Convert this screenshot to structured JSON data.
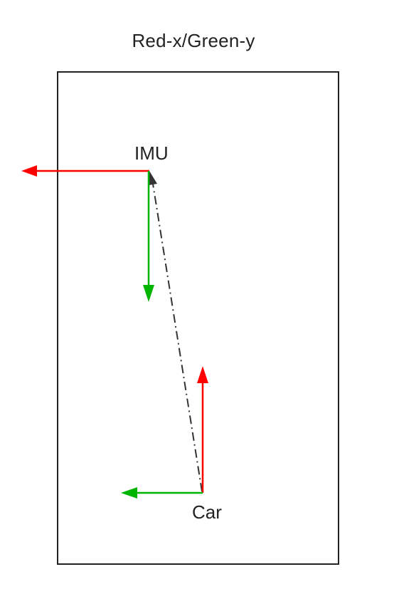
{
  "title": "Red-x/Green-y",
  "frames": {
    "imu": {
      "label": "IMU"
    },
    "car": {
      "label": "Car"
    }
  },
  "colors": {
    "x_axis": "#ff0000",
    "y_axis": "#00b400",
    "link": "#333333",
    "frame": "#222222"
  }
}
